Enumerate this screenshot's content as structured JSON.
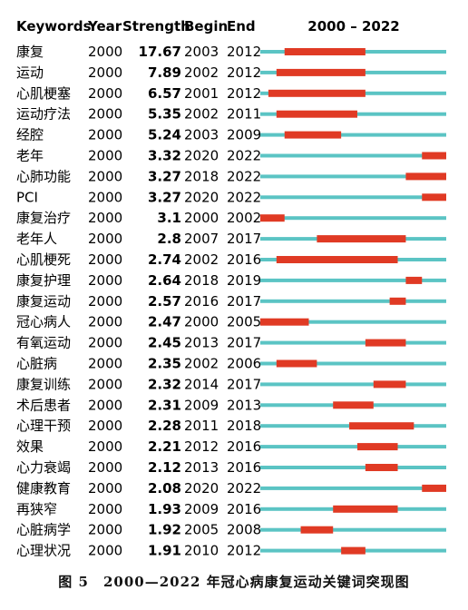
{
  "chart_data": {
    "type": "table",
    "headers": {
      "keyword": "Keywords",
      "year": "Year",
      "strength": "Strength",
      "begin": "Begin",
      "end": "End",
      "range": "2000 – 2022"
    },
    "timeline_start": 2000,
    "timeline_end": 2022,
    "colors": {
      "base": "#5bc4c4",
      "burst": "#e03a24"
    },
    "rows": [
      {
        "keyword": "康复",
        "year": 2000,
        "strength": "17.67",
        "begin": 2003,
        "end": 2012
      },
      {
        "keyword": "运动",
        "year": 2000,
        "strength": "7.89",
        "begin": 2002,
        "end": 2012
      },
      {
        "keyword": "心肌梗塞",
        "year": 2000,
        "strength": "6.57",
        "begin": 2001,
        "end": 2012
      },
      {
        "keyword": "运动疗法",
        "year": 2000,
        "strength": "5.35",
        "begin": 2002,
        "end": 2011
      },
      {
        "keyword": "经腔",
        "year": 2000,
        "strength": "5.24",
        "begin": 2003,
        "end": 2009
      },
      {
        "keyword": "老年",
        "year": 2000,
        "strength": "3.32",
        "begin": 2020,
        "end": 2022
      },
      {
        "keyword": "心肺功能",
        "year": 2000,
        "strength": "3.27",
        "begin": 2018,
        "end": 2022
      },
      {
        "keyword": "PCI",
        "year": 2000,
        "strength": "3.27",
        "begin": 2020,
        "end": 2022
      },
      {
        "keyword": "康复治疗",
        "year": 2000,
        "strength": "3.1",
        "begin": 2000,
        "end": 2002
      },
      {
        "keyword": "老年人",
        "year": 2000,
        "strength": "2.8",
        "begin": 2007,
        "end": 2017
      },
      {
        "keyword": "心肌梗死",
        "year": 2000,
        "strength": "2.74",
        "begin": 2002,
        "end": 2016
      },
      {
        "keyword": "康复护理",
        "year": 2000,
        "strength": "2.64",
        "begin": 2018,
        "end": 2019
      },
      {
        "keyword": "康复运动",
        "year": 2000,
        "strength": "2.57",
        "begin": 2016,
        "end": 2017
      },
      {
        "keyword": "冠心病人",
        "year": 2000,
        "strength": "2.47",
        "begin": 2000,
        "end": 2005
      },
      {
        "keyword": "有氧运动",
        "year": 2000,
        "strength": "2.45",
        "begin": 2013,
        "end": 2017
      },
      {
        "keyword": "心脏病",
        "year": 2000,
        "strength": "2.35",
        "begin": 2002,
        "end": 2006
      },
      {
        "keyword": "康复训练",
        "year": 2000,
        "strength": "2.32",
        "begin": 2014,
        "end": 2017
      },
      {
        "keyword": "术后患者",
        "year": 2000,
        "strength": "2.31",
        "begin": 2009,
        "end": 2013
      },
      {
        "keyword": "心理干预",
        "year": 2000,
        "strength": "2.28",
        "begin": 2011,
        "end": 2018
      },
      {
        "keyword": "效果",
        "year": 2000,
        "strength": "2.21",
        "begin": 2012,
        "end": 2016
      },
      {
        "keyword": "心力衰竭",
        "year": 2000,
        "strength": "2.12",
        "begin": 2013,
        "end": 2016
      },
      {
        "keyword": "健康教育",
        "year": 2000,
        "strength": "2.08",
        "begin": 2020,
        "end": 2022
      },
      {
        "keyword": "再狭窄",
        "year": 2000,
        "strength": "1.93",
        "begin": 2009,
        "end": 2016
      },
      {
        "keyword": "心脏病学",
        "year": 2000,
        "strength": "1.92",
        "begin": 2005,
        "end": 2008
      },
      {
        "keyword": "心理状况",
        "year": 2000,
        "strength": "1.91",
        "begin": 2010,
        "end": 2012
      }
    ]
  },
  "caption": "图 5　2000—2022 年冠心病康复运动关键词突现图"
}
